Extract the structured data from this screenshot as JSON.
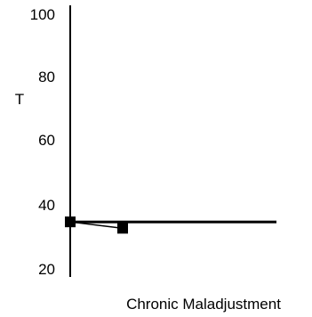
{
  "chart_data": {
    "type": "line",
    "title": "",
    "xlabel": "Chronic Maladjustment",
    "ylabel": "T",
    "ylim": [
      20,
      100
    ],
    "yticks": [
      "100",
      "80",
      "60",
      "40",
      "20"
    ],
    "grid": false,
    "reference_line": {
      "y": 35
    },
    "series": [
      {
        "points": [
          {
            "x": 0,
            "y": 35
          },
          {
            "x": 1,
            "y": 33
          }
        ],
        "marker": "square",
        "color": "#000000"
      }
    ]
  }
}
